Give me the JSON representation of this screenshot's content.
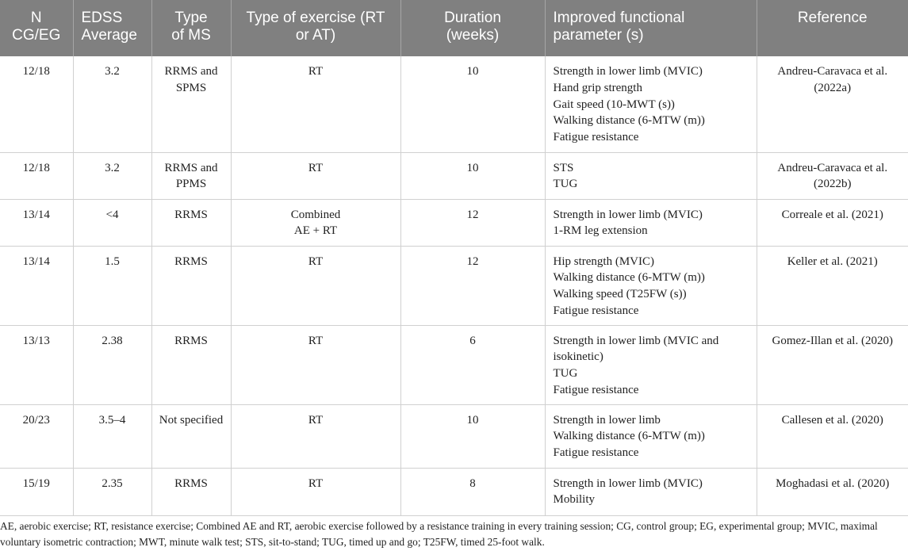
{
  "table": {
    "headers": [
      "N\nCG/EG",
      "EDSS\nAverage",
      "Type\nof MS",
      "Type of exercise (RT\nor AT)",
      "Duration\n(weeks)",
      "Improved functional\nparameter (s)",
      "Reference"
    ],
    "rows": [
      {
        "n": "12/18",
        "edss": "3.2",
        "ms_type": "RRMS and\nSPMS",
        "exercise": "RT",
        "duration": "10",
        "parameters": "Strength in lower limb (MVIC)\nHand grip strength\nGait speed (10-MWT (s))\nWalking distance (6-MTW (m))\nFatigue resistance",
        "reference": "Andreu-Caravaca et al.\n(2022a)"
      },
      {
        "n": "12/18",
        "edss": "3.2",
        "ms_type": "RRMS and\nPPMS",
        "exercise": "RT",
        "duration": "10",
        "parameters": "STS\nTUG",
        "reference": "Andreu-Caravaca et al.\n(2022b)"
      },
      {
        "n": "13/14",
        "edss": "<4",
        "ms_type": "RRMS",
        "exercise": "Combined\nAE + RT",
        "duration": "12",
        "parameters": "Strength in lower limb (MVIC)\n1-RM leg extension",
        "reference": "Correale et al. (2021)"
      },
      {
        "n": "13/14",
        "edss": "1.5",
        "ms_type": "RRMS",
        "exercise": "RT",
        "duration": "12",
        "parameters": "Hip strength (MVIC)\nWalking distance (6-MTW (m))\nWalking speed (T25FW (s))\nFatigue resistance",
        "reference": "Keller et al. (2021)"
      },
      {
        "n": "13/13",
        "edss": "2.38",
        "ms_type": "RRMS",
        "exercise": "RT",
        "duration": "6",
        "parameters": "Strength in lower limb (MVIC and\nisokinetic)\nTUG\nFatigue resistance",
        "reference": "Gomez-Illan et al. (2020)"
      },
      {
        "n": "20/23",
        "edss": "3.5–4",
        "ms_type": "Not specified",
        "exercise": "RT",
        "duration": "10",
        "parameters": "Strength in lower limb\nWalking distance (6-MTW (m))\nFatigue resistance",
        "reference": "Callesen et al. (2020)"
      },
      {
        "n": "15/19",
        "edss": "2.35",
        "ms_type": "RRMS",
        "exercise": "RT",
        "duration": "8",
        "parameters": "Strength in lower limb (MVIC)\nMobility",
        "reference": "Moghadasi et al. (2020)"
      }
    ]
  },
  "footnote": "AE, aerobic exercise; RT, resistance exercise; Combined AE and RT, aerobic exercise followed by a resistance training in every training session; CG, control group; EG, experimental group; MVIC, maximal voluntary isometric contraction; MWT, minute walk test; STS, sit-to-stand; TUG, timed up and go; T25FW, timed 25-foot walk.",
  "colors": {
    "header_bg": "#808080",
    "header_text": "#ffffff",
    "body_text": "#222222",
    "rule": "#d0d0d0"
  }
}
